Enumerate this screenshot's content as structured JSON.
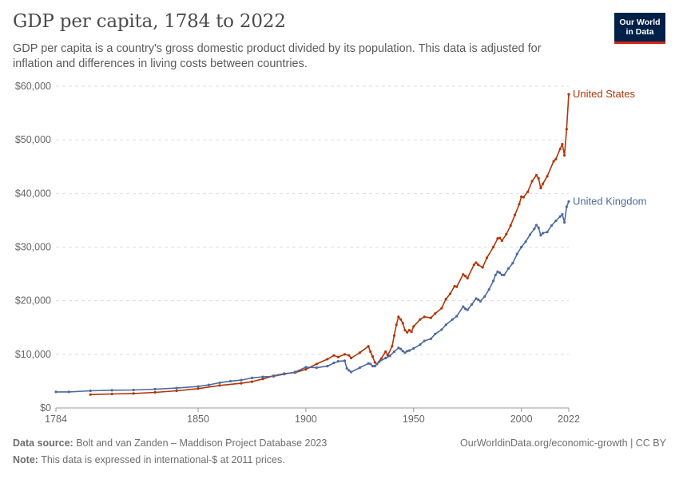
{
  "header": {
    "title": "GDP per capita, 1784 to 2022",
    "subtitle": "GDP per capita is a country's gross domestic product divided by its population. This data is adjusted for inflation and differences in living costs between countries.",
    "logo_line1": "Our World",
    "logo_line2": "in Data"
  },
  "footer": {
    "source_label": "Data source:",
    "source_text": "Bolt and van Zanden – Maddison Project Database 2023",
    "note_label": "Note:",
    "note_text": "This data is expressed in international-$ at 2011 prices.",
    "credit": "OurWorldinData.org/economic-growth | CC BY"
  },
  "chart_data": {
    "type": "line",
    "title": "GDP per capita, 1784 to 2022",
    "xlabel": "",
    "ylabel": "",
    "xlim": [
      1784,
      2022
    ],
    "ylim": [
      0,
      60000
    ],
    "y_ticks": [
      0,
      10000,
      20000,
      30000,
      40000,
      50000,
      60000
    ],
    "y_tick_labels": [
      "$0",
      "$10,000",
      "$20,000",
      "$30,000",
      "$40,000",
      "$50,000",
      "$60,000"
    ],
    "x_ticks": [
      1784,
      1850,
      1900,
      1950,
      2000,
      2022
    ],
    "x_tick_labels": [
      "1784",
      "1850",
      "1900",
      "1950",
      "2000",
      "2022"
    ],
    "grid": "horizontal dashed",
    "legend": "labels at line ends",
    "colors": {
      "United States": "#b13507",
      "United Kingdom": "#4c6a9c"
    },
    "series": [
      {
        "name": "United States",
        "points": [
          [
            1800,
            2500
          ],
          [
            1810,
            2600
          ],
          [
            1820,
            2700
          ],
          [
            1830,
            2900
          ],
          [
            1840,
            3200
          ],
          [
            1850,
            3600
          ],
          [
            1860,
            4200
          ],
          [
            1870,
            4600
          ],
          [
            1875,
            4900
          ],
          [
            1880,
            5400
          ],
          [
            1885,
            6000
          ],
          [
            1890,
            6400
          ],
          [
            1895,
            6600
          ],
          [
            1900,
            7200
          ],
          [
            1905,
            8200
          ],
          [
            1910,
            9100
          ],
          [
            1913,
            9800
          ],
          [
            1915,
            9500
          ],
          [
            1918,
            10000
          ],
          [
            1920,
            9800
          ],
          [
            1921,
            9300
          ],
          [
            1925,
            10300
          ],
          [
            1929,
            11500
          ],
          [
            1930,
            10500
          ],
          [
            1931,
            9600
          ],
          [
            1932,
            8500
          ],
          [
            1933,
            8200
          ],
          [
            1935,
            9200
          ],
          [
            1937,
            10500
          ],
          [
            1938,
            9800
          ],
          [
            1940,
            11500
          ],
          [
            1941,
            13500
          ],
          [
            1942,
            15500
          ],
          [
            1943,
            17000
          ],
          [
            1944,
            16500
          ],
          [
            1945,
            15800
          ],
          [
            1946,
            14500
          ],
          [
            1947,
            14100
          ],
          [
            1948,
            14500
          ],
          [
            1949,
            14200
          ],
          [
            1950,
            15200
          ],
          [
            1953,
            16500
          ],
          [
            1955,
            17000
          ],
          [
            1958,
            16800
          ],
          [
            1960,
            17600
          ],
          [
            1963,
            18600
          ],
          [
            1965,
            20300
          ],
          [
            1967,
            21300
          ],
          [
            1969,
            22700
          ],
          [
            1970,
            22600
          ],
          [
            1973,
            24900
          ],
          [
            1974,
            24600
          ],
          [
            1975,
            24200
          ],
          [
            1978,
            26700
          ],
          [
            1979,
            27100
          ],
          [
            1980,
            26700
          ],
          [
            1982,
            26200
          ],
          [
            1984,
            28000
          ],
          [
            1987,
            30000
          ],
          [
            1989,
            31600
          ],
          [
            1990,
            31700
          ],
          [
            1991,
            31200
          ],
          [
            1993,
            32400
          ],
          [
            1995,
            34000
          ],
          [
            1997,
            36000
          ],
          [
            1999,
            38000
          ],
          [
            2000,
            39400
          ],
          [
            2001,
            39300
          ],
          [
            2003,
            40300
          ],
          [
            2005,
            42300
          ],
          [
            2007,
            43400
          ],
          [
            2008,
            42800
          ],
          [
            2009,
            41000
          ],
          [
            2010,
            41800
          ],
          [
            2012,
            43200
          ],
          [
            2015,
            46000
          ],
          [
            2016,
            46400
          ],
          [
            2018,
            48300
          ],
          [
            2019,
            49200
          ],
          [
            2020,
            47100
          ],
          [
            2021,
            52000
          ],
          [
            2022,
            58500
          ]
        ]
      },
      {
        "name": "United Kingdom",
        "points": [
          [
            1784,
            3000
          ],
          [
            1790,
            3000
          ],
          [
            1800,
            3200
          ],
          [
            1810,
            3300
          ],
          [
            1820,
            3350
          ],
          [
            1830,
            3500
          ],
          [
            1840,
            3700
          ],
          [
            1850,
            4000
          ],
          [
            1855,
            4300
          ],
          [
            1860,
            4700
          ],
          [
            1865,
            5000
          ],
          [
            1870,
            5200
          ],
          [
            1875,
            5600
          ],
          [
            1880,
            5800
          ],
          [
            1885,
            5900
          ],
          [
            1890,
            6300
          ],
          [
            1895,
            6700
          ],
          [
            1900,
            7600
          ],
          [
            1905,
            7500
          ],
          [
            1910,
            7800
          ],
          [
            1913,
            8400
          ],
          [
            1915,
            8700
          ],
          [
            1918,
            8800
          ],
          [
            1919,
            7400
          ],
          [
            1920,
            7000
          ],
          [
            1921,
            6700
          ],
          [
            1925,
            7500
          ],
          [
            1929,
            8300
          ],
          [
            1930,
            8200
          ],
          [
            1931,
            7800
          ],
          [
            1932,
            7800
          ],
          [
            1934,
            8600
          ],
          [
            1937,
            9300
          ],
          [
            1939,
            9700
          ],
          [
            1941,
            10500
          ],
          [
            1943,
            11200
          ],
          [
            1944,
            11000
          ],
          [
            1945,
            10600
          ],
          [
            1946,
            10300
          ],
          [
            1947,
            10600
          ],
          [
            1948,
            10700
          ],
          [
            1950,
            11100
          ],
          [
            1953,
            11800
          ],
          [
            1955,
            12500
          ],
          [
            1958,
            12900
          ],
          [
            1960,
            13800
          ],
          [
            1963,
            14600
          ],
          [
            1965,
            15500
          ],
          [
            1968,
            16500
          ],
          [
            1970,
            17100
          ],
          [
            1973,
            18900
          ],
          [
            1974,
            18500
          ],
          [
            1975,
            18300
          ],
          [
            1977,
            19300
          ],
          [
            1979,
            20400
          ],
          [
            1980,
            20200
          ],
          [
            1981,
            19900
          ],
          [
            1983,
            20800
          ],
          [
            1985,
            22100
          ],
          [
            1987,
            23700
          ],
          [
            1988,
            24800
          ],
          [
            1989,
            25400
          ],
          [
            1990,
            25200
          ],
          [
            1991,
            24800
          ],
          [
            1992,
            24800
          ],
          [
            1994,
            26000
          ],
          [
            1996,
            27000
          ],
          [
            1998,
            28700
          ],
          [
            2000,
            30000
          ],
          [
            2002,
            31000
          ],
          [
            2004,
            32300
          ],
          [
            2006,
            33400
          ],
          [
            2007,
            34100
          ],
          [
            2008,
            33600
          ],
          [
            2009,
            32200
          ],
          [
            2010,
            32600
          ],
          [
            2012,
            32800
          ],
          [
            2014,
            34000
          ],
          [
            2016,
            34900
          ],
          [
            2018,
            35700
          ],
          [
            2019,
            36100
          ],
          [
            2020,
            34600
          ],
          [
            2021,
            37500
          ],
          [
            2022,
            38500
          ]
        ]
      }
    ]
  }
}
